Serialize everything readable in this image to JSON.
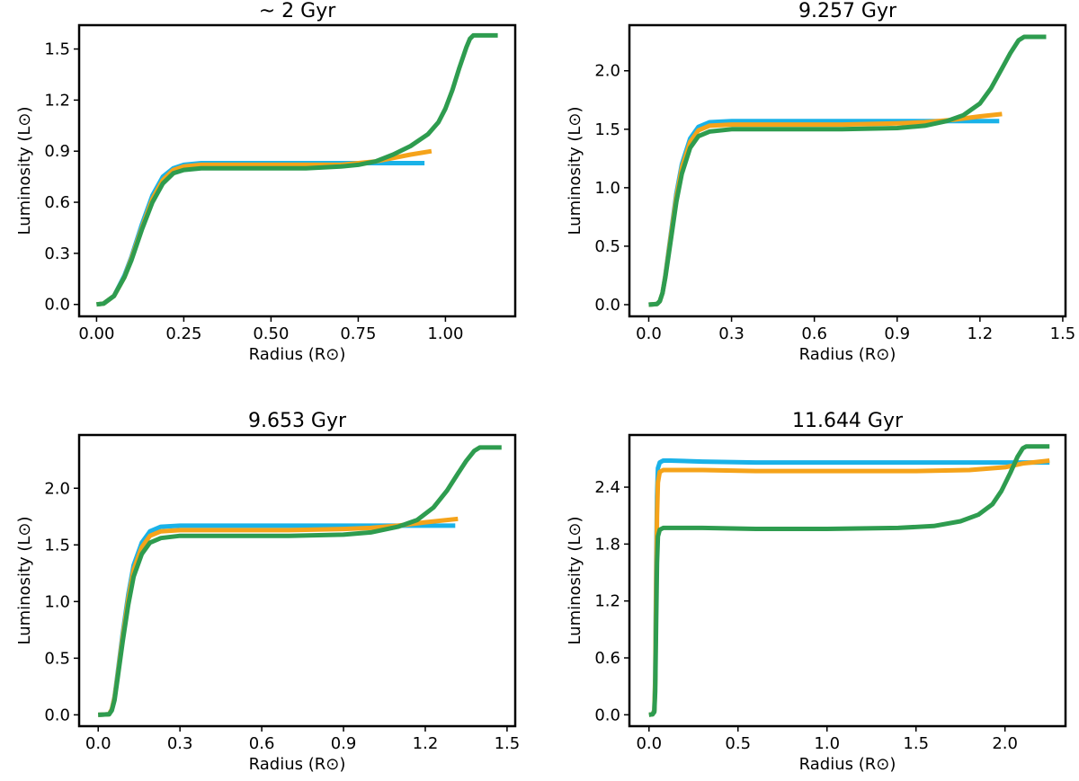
{
  "colors": {
    "blue": "#1ab2e8",
    "orange": "#f5a31a",
    "green": "#2e9c4f"
  },
  "chart_data": [
    {
      "type": "line",
      "title": "~ 2 Gyr",
      "xlabel": "Radius (R⊙)",
      "ylabel": "Luminosity (L⊙)",
      "xlim": [
        -0.05,
        1.2
      ],
      "ylim": [
        -0.07,
        1.64
      ],
      "xticks": [
        0.0,
        0.25,
        0.5,
        0.75,
        1.0
      ],
      "xtick_labels": [
        "0.00",
        "0.25",
        "0.50",
        "0.75",
        "1.00"
      ],
      "yticks": [
        0.0,
        0.3,
        0.6,
        0.9,
        1.2,
        1.5
      ],
      "ytick_labels": [
        "0.0",
        "0.3",
        "0.6",
        "0.9",
        "1.2",
        "1.5"
      ],
      "grid": false,
      "series": [
        {
          "name": "blue",
          "color": "blue",
          "x": [
            0,
            0.02,
            0.05,
            0.08,
            0.1,
            0.13,
            0.16,
            0.19,
            0.22,
            0.25,
            0.3,
            0.4,
            0.5,
            0.6,
            0.7,
            0.8,
            0.9,
            0.94
          ],
          "y": [
            0,
            0.005,
            0.05,
            0.17,
            0.28,
            0.47,
            0.64,
            0.75,
            0.8,
            0.82,
            0.83,
            0.83,
            0.83,
            0.83,
            0.83,
            0.83,
            0.83,
            0.83
          ]
        },
        {
          "name": "orange",
          "color": "orange",
          "x": [
            0,
            0.02,
            0.05,
            0.08,
            0.1,
            0.13,
            0.16,
            0.19,
            0.22,
            0.25,
            0.3,
            0.4,
            0.5,
            0.6,
            0.7,
            0.75,
            0.8,
            0.85,
            0.9,
            0.96
          ],
          "y": [
            0,
            0.005,
            0.05,
            0.16,
            0.27,
            0.45,
            0.62,
            0.73,
            0.79,
            0.81,
            0.82,
            0.82,
            0.82,
            0.82,
            0.82,
            0.83,
            0.84,
            0.86,
            0.88,
            0.9
          ]
        },
        {
          "name": "green",
          "color": "green",
          "x": [
            0,
            0.02,
            0.05,
            0.08,
            0.1,
            0.13,
            0.16,
            0.19,
            0.22,
            0.25,
            0.3,
            0.4,
            0.5,
            0.6,
            0.7,
            0.75,
            0.8,
            0.85,
            0.9,
            0.95,
            0.98,
            1.0,
            1.02,
            1.04,
            1.06,
            1.07,
            1.08,
            1.15
          ],
          "y": [
            0,
            0.005,
            0.05,
            0.16,
            0.26,
            0.44,
            0.6,
            0.71,
            0.77,
            0.79,
            0.8,
            0.8,
            0.8,
            0.8,
            0.81,
            0.82,
            0.84,
            0.88,
            0.93,
            1.0,
            1.07,
            1.15,
            1.26,
            1.39,
            1.51,
            1.56,
            1.58,
            1.58
          ]
        }
      ]
    },
    {
      "type": "line",
      "title": "9.257 Gyr",
      "xlabel": "Radius (R⊙)",
      "ylabel": "Luminosity (L⊙)",
      "xlim": [
        -0.07,
        1.51
      ],
      "ylim": [
        -0.1,
        2.39
      ],
      "xticks": [
        0.0,
        0.3,
        0.6,
        0.9,
        1.2,
        1.5
      ],
      "xtick_labels": [
        "0.0",
        "0.3",
        "0.6",
        "0.9",
        "1.2",
        "1.5"
      ],
      "yticks": [
        0.0,
        0.5,
        1.0,
        1.5,
        2.0
      ],
      "ytick_labels": [
        "0.0",
        "0.5",
        "1.0",
        "1.5",
        "2.0"
      ],
      "grid": false,
      "series": [
        {
          "name": "blue",
          "color": "blue",
          "x": [
            0,
            0.03,
            0.04,
            0.05,
            0.06,
            0.08,
            0.1,
            0.12,
            0.15,
            0.18,
            0.22,
            0.3,
            0.5,
            0.7,
            0.9,
            1.1,
            1.27
          ],
          "y": [
            0,
            0.005,
            0.03,
            0.1,
            0.25,
            0.6,
            0.95,
            1.2,
            1.42,
            1.52,
            1.56,
            1.57,
            1.57,
            1.57,
            1.57,
            1.57,
            1.57
          ]
        },
        {
          "name": "orange",
          "color": "orange",
          "x": [
            0,
            0.03,
            0.04,
            0.05,
            0.06,
            0.08,
            0.1,
            0.12,
            0.15,
            0.18,
            0.22,
            0.3,
            0.5,
            0.7,
            0.9,
            1.0,
            1.1,
            1.2,
            1.28
          ],
          "y": [
            0,
            0.005,
            0.03,
            0.1,
            0.24,
            0.58,
            0.92,
            1.17,
            1.39,
            1.49,
            1.53,
            1.54,
            1.54,
            1.54,
            1.55,
            1.56,
            1.58,
            1.61,
            1.63
          ]
        },
        {
          "name": "green",
          "color": "green",
          "x": [
            0,
            0.03,
            0.04,
            0.05,
            0.06,
            0.08,
            0.1,
            0.12,
            0.15,
            0.18,
            0.22,
            0.3,
            0.5,
            0.7,
            0.9,
            1.0,
            1.08,
            1.14,
            1.2,
            1.24,
            1.28,
            1.31,
            1.34,
            1.36,
            1.44
          ],
          "y": [
            0,
            0.005,
            0.03,
            0.1,
            0.23,
            0.55,
            0.88,
            1.12,
            1.34,
            1.44,
            1.48,
            1.5,
            1.5,
            1.5,
            1.51,
            1.53,
            1.57,
            1.62,
            1.72,
            1.85,
            2.02,
            2.15,
            2.26,
            2.29,
            2.29
          ]
        }
      ]
    },
    {
      "type": "line",
      "title": "9.653 Gyr",
      "xlabel": "Radius (R⊙)",
      "ylabel": "Luminosity (L⊙)",
      "xlim": [
        -0.07,
        1.53
      ],
      "ylim": [
        -0.1,
        2.47
      ],
      "xticks": [
        0.0,
        0.3,
        0.6,
        0.9,
        1.2,
        1.5
      ],
      "xtick_labels": [
        "0.0",
        "0.3",
        "0.6",
        "0.9",
        "1.2",
        "1.5"
      ],
      "yticks": [
        0.0,
        0.5,
        1.0,
        1.5,
        2.0
      ],
      "ytick_labels": [
        "0.0",
        "0.5",
        "1.0",
        "1.5",
        "2.0"
      ],
      "grid": false,
      "series": [
        {
          "name": "blue",
          "color": "blue",
          "x": [
            0,
            0.04,
            0.05,
            0.06,
            0.07,
            0.09,
            0.11,
            0.13,
            0.16,
            0.19,
            0.23,
            0.3,
            0.5,
            0.7,
            0.9,
            1.1,
            1.31
          ],
          "y": [
            0,
            0.005,
            0.05,
            0.16,
            0.34,
            0.72,
            1.06,
            1.32,
            1.52,
            1.62,
            1.66,
            1.67,
            1.67,
            1.67,
            1.67,
            1.67,
            1.67
          ]
        },
        {
          "name": "orange",
          "color": "orange",
          "x": [
            0,
            0.04,
            0.05,
            0.06,
            0.07,
            0.09,
            0.11,
            0.13,
            0.16,
            0.19,
            0.23,
            0.3,
            0.5,
            0.7,
            0.9,
            1.0,
            1.1,
            1.2,
            1.32
          ],
          "y": [
            0,
            0.005,
            0.05,
            0.15,
            0.32,
            0.69,
            1.02,
            1.28,
            1.48,
            1.58,
            1.62,
            1.63,
            1.63,
            1.63,
            1.64,
            1.65,
            1.67,
            1.7,
            1.73
          ]
        },
        {
          "name": "green",
          "color": "green",
          "x": [
            0,
            0.04,
            0.05,
            0.06,
            0.07,
            0.09,
            0.11,
            0.13,
            0.16,
            0.19,
            0.23,
            0.3,
            0.5,
            0.7,
            0.9,
            1.0,
            1.1,
            1.17,
            1.23,
            1.28,
            1.32,
            1.35,
            1.38,
            1.4,
            1.48
          ],
          "y": [
            0,
            0.005,
            0.04,
            0.13,
            0.3,
            0.65,
            0.97,
            1.22,
            1.42,
            1.52,
            1.56,
            1.58,
            1.58,
            1.58,
            1.59,
            1.61,
            1.66,
            1.72,
            1.83,
            1.98,
            2.13,
            2.24,
            2.33,
            2.36,
            2.36
          ]
        }
      ]
    },
    {
      "type": "line",
      "title": "11.644 Gyr",
      "xlabel": "Radius (R⊙)",
      "ylabel": "Luminosity (L⊙)",
      "xlim": [
        -0.11,
        2.34
      ],
      "ylim": [
        -0.12,
        2.95
      ],
      "xticks": [
        0.0,
        0.5,
        1.0,
        1.5,
        2.0
      ],
      "xtick_labels": [
        "0.0",
        "0.5",
        "1.0",
        "1.5",
        "2.0"
      ],
      "yticks": [
        0.0,
        0.6,
        1.2,
        1.8,
        2.4
      ],
      "ytick_labels": [
        "0.0",
        "0.6",
        "1.2",
        "1.8",
        "2.4"
      ],
      "grid": false,
      "series": [
        {
          "name": "blue",
          "color": "blue",
          "x": [
            0,
            0.02,
            0.03,
            0.035,
            0.04,
            0.045,
            0.05,
            0.06,
            0.08,
            0.12,
            0.3,
            0.6,
            1.0,
            1.5,
            2.0,
            2.25
          ],
          "y": [
            0,
            0.005,
            0.05,
            0.4,
            1.5,
            2.3,
            2.6,
            2.66,
            2.68,
            2.68,
            2.67,
            2.66,
            2.66,
            2.66,
            2.66,
            2.66
          ]
        },
        {
          "name": "orange",
          "color": "orange",
          "x": [
            0,
            0.02,
            0.03,
            0.035,
            0.04,
            0.045,
            0.05,
            0.06,
            0.08,
            0.12,
            0.3,
            0.6,
            1.0,
            1.5,
            1.8,
            2.0,
            2.1,
            2.25
          ],
          "y": [
            0,
            0.005,
            0.04,
            0.35,
            1.3,
            2.1,
            2.45,
            2.56,
            2.58,
            2.58,
            2.58,
            2.57,
            2.57,
            2.57,
            2.58,
            2.61,
            2.65,
            2.68
          ]
        },
        {
          "name": "green",
          "color": "green",
          "x": [
            0,
            0.02,
            0.03,
            0.035,
            0.04,
            0.045,
            0.05,
            0.06,
            0.08,
            0.12,
            0.3,
            0.6,
            1.0,
            1.4,
            1.6,
            1.75,
            1.85,
            1.93,
            1.98,
            2.03,
            2.07,
            2.1,
            2.12,
            2.25
          ],
          "y": [
            0,
            0.005,
            0.03,
            0.25,
            0.95,
            1.6,
            1.88,
            1.95,
            1.97,
            1.97,
            1.97,
            1.96,
            1.96,
            1.97,
            1.99,
            2.04,
            2.11,
            2.22,
            2.36,
            2.55,
            2.72,
            2.81,
            2.83,
            2.83
          ]
        }
      ]
    }
  ]
}
